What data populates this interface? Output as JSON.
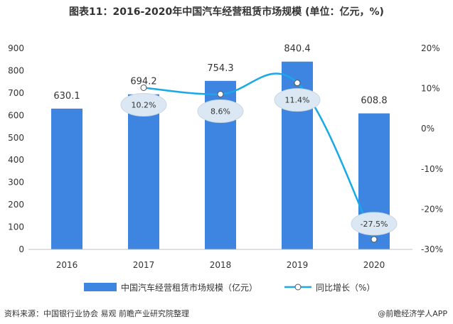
{
  "title": "图表11：2016-2020年中国汽车经营租赁市场规模 (单位：亿元，%)",
  "source": "资料来源：中国银行业协会 易观 前瞻产业研究院整理",
  "brand": "@前瞻经济学人APP",
  "chart_data": {
    "type": "bar",
    "categories": [
      "2016",
      "2017",
      "2018",
      "2019",
      "2020"
    ],
    "series": [
      {
        "name": "中国汽车经营租赁市场规模（亿元）",
        "type": "bar",
        "axis": "left",
        "values": [
          630.1,
          694.2,
          754.3,
          840.4,
          608.8
        ],
        "labels": [
          "630.1",
          "694.2",
          "754.3",
          "840.4",
          "608.8"
        ]
      },
      {
        "name": "同比增长（%）",
        "type": "line",
        "axis": "right",
        "values": [
          null,
          10.2,
          8.6,
          11.4,
          -27.5
        ],
        "labels": [
          "",
          "10.2%",
          "8.6%",
          "11.4%",
          "-27.5%"
        ]
      }
    ],
    "y_left": {
      "min": 0,
      "max": 900,
      "step": 100,
      "ticks": [
        "0",
        "100",
        "200",
        "300",
        "400",
        "500",
        "600",
        "700",
        "800",
        "900"
      ]
    },
    "y_right": {
      "min": -30,
      "max": 20,
      "step": 10,
      "ticks": [
        "-30%",
        "-20%",
        "-10%",
        "0%",
        "10%",
        "20%"
      ]
    },
    "colors": {
      "bar": "#3d85e0",
      "line": "#18a9e6",
      "bubble": "#dbe7f2",
      "axis": "#bfbfbf"
    },
    "legend_position": "bottom"
  }
}
